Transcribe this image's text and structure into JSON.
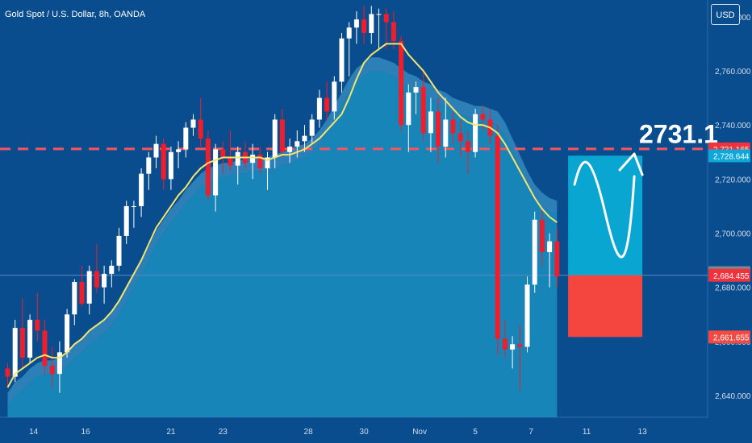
{
  "title": "Gold Spot / U.S. Dollar, 8h, OANDA",
  "currency_button": "USD",
  "chart_data": {
    "type": "candlestick",
    "y_range": [
      2632,
      2785
    ],
    "y_ticks": [
      "2,780.000",
      "2,760.000",
      "2,740.000",
      "2,720.000",
      "2,700.000",
      "2,680.000",
      "2,660.000",
      "2,640.000"
    ],
    "y_tick_values": [
      2780,
      2760,
      2740,
      2720,
      2700,
      2680,
      2660,
      2640
    ],
    "x_ticks": [
      {
        "label": "14",
        "bar": 3.5
      },
      {
        "label": "16",
        "bar": 10.5
      },
      {
        "label": "21",
        "bar": 22
      },
      {
        "label": "23",
        "bar": 29
      },
      {
        "label": "28",
        "bar": 40.5
      },
      {
        "label": "30",
        "bar": 48
      },
      {
        "label": "Nov",
        "bar": 55.5
      },
      {
        "label": "5",
        "bar": 63
      },
      {
        "label": "7",
        "bar": 70.5
      },
      {
        "label": "11",
        "bar": 78
      },
      {
        "label": "13",
        "bar": 85.5
      }
    ],
    "colors": {
      "up": "#ffffff",
      "down": "#f01e2c",
      "ema": "#f5e56b",
      "area": "#1a8fc0",
      "target": "#0aa6d2",
      "stop": "#f4463f",
      "dashed": "#f6565f"
    },
    "candles": [
      [
        2650,
        2652,
        2643,
        2647
      ],
      [
        2647,
        2668,
        2645,
        2665
      ],
      [
        2665,
        2676,
        2650,
        2654
      ],
      [
        2654,
        2670,
        2652,
        2668
      ],
      [
        2668,
        2678,
        2660,
        2664
      ],
      [
        2664,
        2668,
        2648,
        2651
      ],
      [
        2651,
        2658,
        2643,
        2648
      ],
      [
        2648,
        2660,
        2641,
        2656
      ],
      [
        2656,
        2672,
        2654,
        2670
      ],
      [
        2670,
        2683,
        2666,
        2682
      ],
      [
        2682,
        2688,
        2673,
        2674
      ],
      [
        2674,
        2688,
        2670,
        2686
      ],
      [
        2686,
        2696,
        2678,
        2680
      ],
      [
        2680,
        2688,
        2674,
        2685
      ],
      [
        2685,
        2690,
        2680,
        2688
      ],
      [
        2688,
        2702,
        2686,
        2699
      ],
      [
        2699,
        2712,
        2696,
        2710
      ],
      [
        2710,
        2712,
        2702,
        2710
      ],
      [
        2710,
        2724,
        2706,
        2722
      ],
      [
        2722,
        2730,
        2716,
        2728
      ],
      [
        2728,
        2736,
        2724,
        2733
      ],
      [
        2733,
        2735,
        2716,
        2720
      ],
      [
        2720,
        2732,
        2716,
        2730
      ],
      [
        2730,
        2734,
        2724,
        2731
      ],
      [
        2731,
        2741,
        2728,
        2739
      ],
      [
        2739,
        2744,
        2736,
        2742
      ],
      [
        2742,
        2750,
        2732,
        2735
      ],
      [
        2735,
        2738,
        2712,
        2714
      ],
      [
        2714,
        2733,
        2708,
        2731
      ],
      [
        2731,
        2734,
        2722,
        2728
      ],
      [
        2728,
        2738,
        2723,
        2725
      ],
      [
        2725,
        2732,
        2718,
        2730
      ],
      [
        2730,
        2734,
        2724,
        2726
      ],
      [
        2726,
        2733,
        2720,
        2729
      ],
      [
        2729,
        2732,
        2722,
        2724
      ],
      [
        2724,
        2730,
        2716,
        2728
      ],
      [
        2728,
        2744,
        2724,
        2742
      ],
      [
        2742,
        2746,
        2728,
        2730
      ],
      [
        2730,
        2735,
        2726,
        2732
      ],
      [
        2732,
        2738,
        2728,
        2734
      ],
      [
        2734,
        2740,
        2730,
        2736
      ],
      [
        2736,
        2744,
        2733,
        2742
      ],
      [
        2742,
        2753,
        2739,
        2750
      ],
      [
        2750,
        2756,
        2742,
        2745
      ],
      [
        2745,
        2758,
        2742,
        2756
      ],
      [
        2756,
        2774,
        2752,
        2772
      ],
      [
        2772,
        2778,
        2758,
        2776
      ],
      [
        2776,
        2782,
        2770,
        2779
      ],
      [
        2779,
        2784,
        2770,
        2774
      ],
      [
        2774,
        2784,
        2770,
        2781
      ],
      [
        2781,
        2783,
        2768,
        2781
      ],
      [
        2781,
        2783,
        2768,
        2778
      ],
      [
        2778,
        2782,
        2768,
        2771
      ],
      [
        2771,
        2773,
        2738,
        2740
      ],
      [
        2740,
        2755,
        2730,
        2752
      ],
      [
        2752,
        2756,
        2744,
        2754
      ],
      [
        2754,
        2760,
        2734,
        2737
      ],
      [
        2737,
        2750,
        2730,
        2745
      ],
      [
        2745,
        2750,
        2726,
        2732
      ],
      [
        2732,
        2750,
        2728,
        2742
      ],
      [
        2742,
        2745,
        2733,
        2737
      ],
      [
        2737,
        2742,
        2728,
        2734
      ],
      [
        2734,
        2738,
        2722,
        2730
      ],
      [
        2730,
        2746,
        2728,
        2744
      ],
      [
        2744,
        2747,
        2738,
        2742
      ],
      [
        2742,
        2746,
        2733,
        2736
      ],
      [
        2736,
        2740,
        2655,
        2661
      ],
      [
        2661,
        2668,
        2654,
        2657
      ],
      [
        2657,
        2662,
        2650,
        2659
      ],
      [
        2659,
        2666,
        2642,
        2658
      ],
      [
        2658,
        2684,
        2656,
        2681
      ],
      [
        2681,
        2708,
        2678,
        2705
      ],
      [
        2705,
        2709,
        2688,
        2693
      ],
      [
        2693,
        2700,
        2680,
        2697
      ],
      [
        2697,
        2702,
        2680,
        2684
      ]
    ],
    "ema": [
      2643,
      2648,
      2650,
      2652,
      2654,
      2655,
      2654,
      2654,
      2656,
      2659,
      2661,
      2664,
      2666,
      2668,
      2671,
      2675,
      2680,
      2685,
      2690,
      2696,
      2702,
      2706,
      2710,
      2714,
      2717,
      2721,
      2724,
      2726,
      2727,
      2728,
      2728,
      2728,
      2728,
      2728,
      2728,
      2727,
      2728,
      2729,
      2729,
      2730,
      2731,
      2733,
      2735,
      2738,
      2741,
      2744,
      2750,
      2757,
      2763,
      2766,
      2768,
      2770,
      2770,
      2770,
      2766,
      2763,
      2760,
      2756,
      2752,
      2749,
      2746,
      2743,
      2741,
      2740,
      2740,
      2739,
      2737,
      2733,
      2728,
      2723,
      2718,
      2713,
      2709,
      2706,
      2704
    ],
    "area": [
      2636,
      2640,
      2642,
      2645,
      2647,
      2648,
      2648,
      2649,
      2651,
      2654,
      2656,
      2659,
      2661,
      2663,
      2666,
      2670,
      2675,
      2680,
      2685,
      2690,
      2696,
      2700,
      2704,
      2707,
      2711,
      2714,
      2717,
      2719,
      2720,
      2721,
      2721,
      2722,
      2722,
      2723,
      2723,
      2723,
      2724,
      2725,
      2726,
      2727,
      2728,
      2730,
      2733,
      2737,
      2742,
      2747,
      2752,
      2756,
      2758,
      2760,
      2760,
      2759,
      2758,
      2756,
      2754,
      2753,
      2751,
      2750,
      2748,
      2747,
      2745,
      2744,
      2743,
      2742,
      2742,
      2741,
      2740,
      2736,
      2730,
      2724,
      2718,
      2713,
      2710,
      2708,
      2707
    ],
    "current_price_line": 2684.455,
    "dashed_level": 2731.165,
    "target_zone": {
      "top": 2728.644,
      "bottom": 2684.455,
      "from_bar": 75.5,
      "to_bar": 85.5
    },
    "stop_zone": {
      "top": 2684.455,
      "bottom": 2661.655,
      "from_bar": 75.5,
      "to_bar": 85.5
    },
    "annotation": "2731.1",
    "price_labels": [
      {
        "text": "2,731.165",
        "value": 2731.165,
        "color": "#f0323c"
      },
      {
        "text": "2,728.644",
        "value": 2728.644,
        "color": "#0ea7d8"
      },
      {
        "text": "2,685.425",
        "value": 2685.425,
        "color": "#7d8791"
      },
      {
        "text": "2,684.455",
        "value": 2684.455,
        "color": "#f0323c"
      },
      {
        "text": "2,661.655",
        "value": 2661.655,
        "color": "#f24a42"
      }
    ]
  }
}
